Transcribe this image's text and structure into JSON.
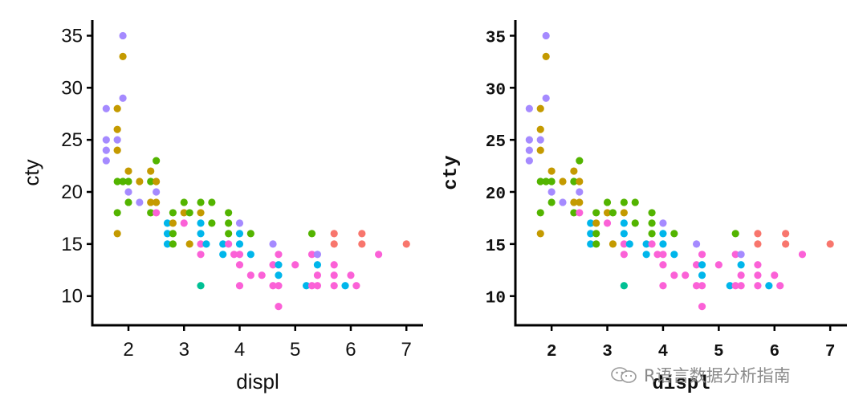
{
  "watermark": {
    "text": "R语言数据分析指南",
    "icon": "wechat-icon"
  },
  "palette": [
    "#F8766D",
    "#C49A00",
    "#53B400",
    "#00C094",
    "#00B6EB",
    "#A58AFF",
    "#FB61D7"
  ],
  "chart_data": [
    {
      "type": "scatter",
      "xlabel": "displ",
      "ylabel": "cty",
      "font": "sans",
      "xlim": [
        1.35,
        7.3
      ],
      "ylim": [
        7.2,
        36.5
      ],
      "xticks": [
        2,
        3,
        4,
        5,
        6,
        7
      ],
      "yticks": [
        10,
        15,
        20,
        25,
        30,
        35
      ],
      "grid": false,
      "legend": "none",
      "points_ref": "shared_points"
    },
    {
      "type": "scatter",
      "xlabel": "displ",
      "ylabel": "cty",
      "font": "mono-bold",
      "xlim": [
        1.35,
        7.3
      ],
      "ylim": [
        7.2,
        36.5
      ],
      "xticks": [
        2,
        3,
        4,
        5,
        6,
        7
      ],
      "yticks": [
        10,
        15,
        20,
        25,
        30,
        35
      ],
      "grid": false,
      "legend": "none",
      "points_ref": "shared_points"
    }
  ],
  "shared_points": [
    [
      1.6,
      28,
      5
    ],
    [
      1.6,
      25,
      5
    ],
    [
      1.6,
      24,
      5
    ],
    [
      1.6,
      23,
      5
    ],
    [
      1.8,
      28,
      1
    ],
    [
      1.8,
      26,
      1
    ],
    [
      1.8,
      25,
      5
    ],
    [
      1.8,
      24,
      1
    ],
    [
      1.8,
      21,
      2
    ],
    [
      1.8,
      18,
      2
    ],
    [
      1.8,
      16,
      1
    ],
    [
      1.9,
      35,
      5
    ],
    [
      1.9,
      33,
      1
    ],
    [
      1.9,
      29,
      5
    ],
    [
      1.9,
      21,
      2
    ],
    [
      2.0,
      22,
      1
    ],
    [
      2.0,
      21,
      2
    ],
    [
      2.0,
      20,
      5
    ],
    [
      2.0,
      19,
      2
    ],
    [
      2.2,
      21,
      1
    ],
    [
      2.2,
      19,
      5
    ],
    [
      2.4,
      22,
      1
    ],
    [
      2.4,
      21,
      2
    ],
    [
      2.4,
      19,
      1
    ],
    [
      2.4,
      18,
      2
    ],
    [
      2.5,
      23,
      2
    ],
    [
      2.5,
      21,
      1
    ],
    [
      2.5,
      20,
      5
    ],
    [
      2.5,
      19,
      1
    ],
    [
      2.5,
      18,
      6
    ],
    [
      2.7,
      17,
      4
    ],
    [
      2.7,
      16,
      4
    ],
    [
      2.7,
      15,
      4
    ],
    [
      2.8,
      18,
      2
    ],
    [
      2.8,
      17,
      1
    ],
    [
      2.8,
      16,
      2
    ],
    [
      2.8,
      15,
      2
    ],
    [
      3.0,
      19,
      2
    ],
    [
      3.0,
      18,
      1
    ],
    [
      3.0,
      17,
      6
    ],
    [
      3.1,
      18,
      2
    ],
    [
      3.1,
      15,
      1
    ],
    [
      3.3,
      19,
      2
    ],
    [
      3.3,
      18,
      1
    ],
    [
      3.3,
      17,
      4
    ],
    [
      3.3,
      16,
      4
    ],
    [
      3.3,
      15,
      6
    ],
    [
      3.3,
      14,
      6
    ],
    [
      3.3,
      11,
      3
    ],
    [
      3.4,
      15,
      4
    ],
    [
      3.5,
      19,
      2
    ],
    [
      3.5,
      17,
      2
    ],
    [
      3.7,
      15,
      4
    ],
    [
      3.7,
      14,
      4
    ],
    [
      3.8,
      18,
      2
    ],
    [
      3.8,
      17,
      2
    ],
    [
      3.8,
      16,
      2
    ],
    [
      3.8,
      15,
      6
    ],
    [
      3.9,
      14,
      6
    ],
    [
      4.0,
      17,
      5
    ],
    [
      4.0,
      16,
      4
    ],
    [
      4.0,
      15,
      4
    ],
    [
      4.0,
      14,
      6
    ],
    [
      4.0,
      13,
      6
    ],
    [
      4.0,
      11,
      6
    ],
    [
      4.2,
      16,
      2
    ],
    [
      4.2,
      14,
      4
    ],
    [
      4.2,
      12,
      6
    ],
    [
      4.4,
      12,
      6
    ],
    [
      4.6,
      15,
      5
    ],
    [
      4.6,
      13,
      6
    ],
    [
      4.6,
      11,
      6
    ],
    [
      4.7,
      14,
      6
    ],
    [
      4.7,
      13,
      4
    ],
    [
      4.7,
      12,
      4
    ],
    [
      4.7,
      11,
      6
    ],
    [
      4.7,
      9,
      6
    ],
    [
      5.0,
      13,
      6
    ],
    [
      5.2,
      11,
      4
    ],
    [
      5.3,
      16,
      2
    ],
    [
      5.3,
      14,
      6
    ],
    [
      5.3,
      11,
      6
    ],
    [
      5.4,
      14,
      5
    ],
    [
      5.4,
      13,
      4
    ],
    [
      5.4,
      12,
      6
    ],
    [
      5.4,
      11,
      6
    ],
    [
      5.7,
      16,
      0
    ],
    [
      5.7,
      15,
      0
    ],
    [
      5.7,
      13,
      6
    ],
    [
      5.7,
      12,
      6
    ],
    [
      5.7,
      11,
      6
    ],
    [
      5.9,
      11,
      4
    ],
    [
      6.0,
      12,
      6
    ],
    [
      6.1,
      11,
      6
    ],
    [
      6.2,
      16,
      0
    ],
    [
      6.2,
      15,
      0
    ],
    [
      6.5,
      14,
      6
    ],
    [
      7.0,
      15,
      0
    ]
  ]
}
